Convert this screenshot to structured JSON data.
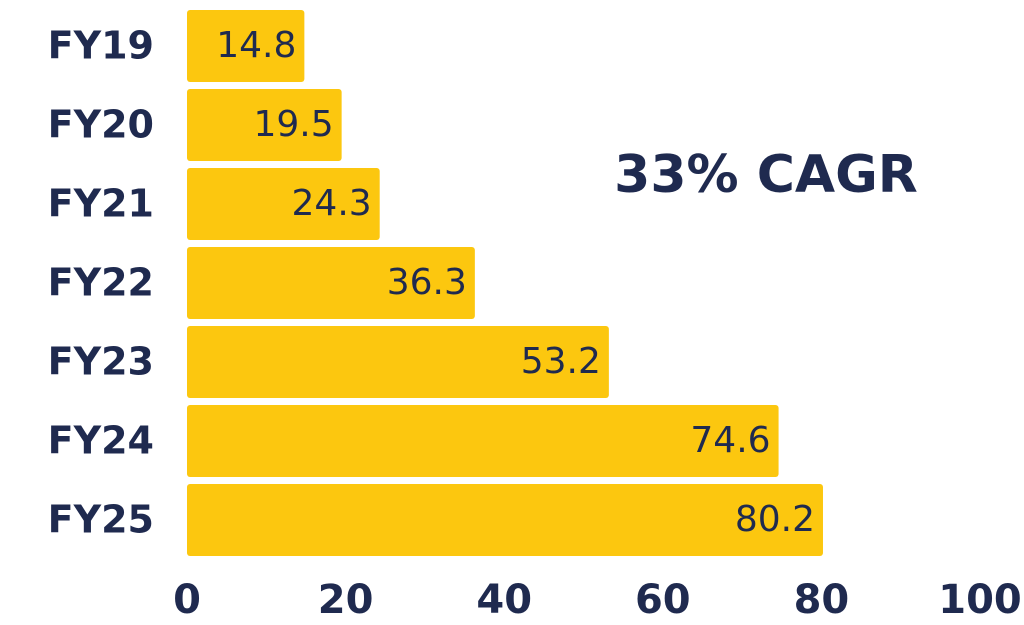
{
  "chart_data": {
    "type": "hbar",
    "annotation": "33% CAGR",
    "categories": [
      "FY19",
      "FY20",
      "FY21",
      "FY22",
      "FY23",
      "FY24",
      "FY25"
    ],
    "values": [
      14.8,
      19.5,
      24.3,
      36.3,
      53.2,
      74.6,
      80.2
    ],
    "color": "#fcc70f",
    "xlim": [
      0,
      100
    ],
    "xticks": [
      0,
      20,
      40,
      60,
      80,
      100
    ],
    "grid": false
  }
}
